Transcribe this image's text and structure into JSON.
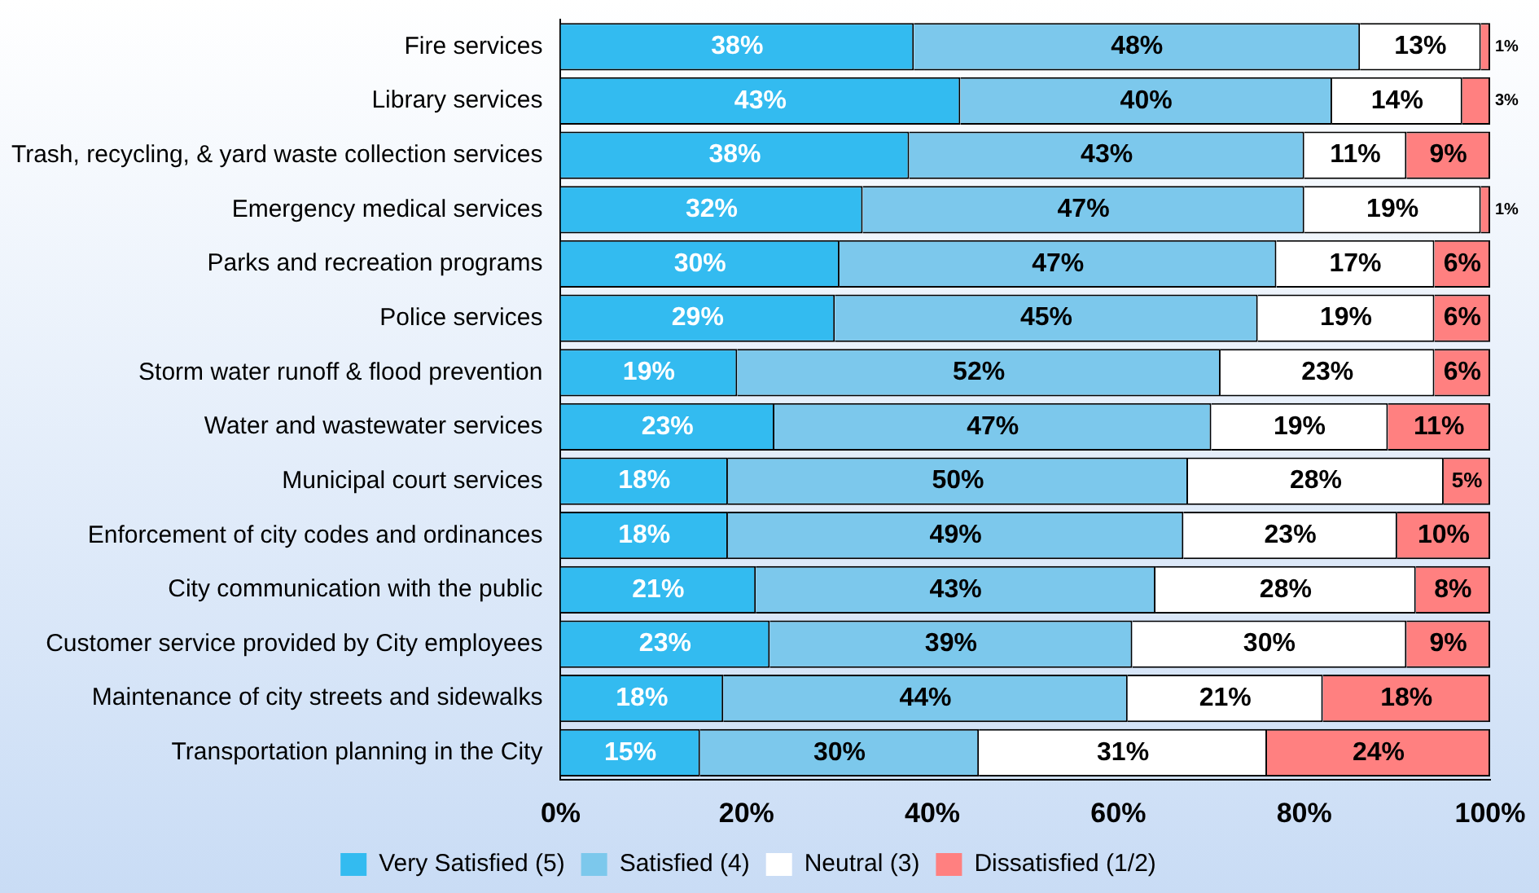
{
  "chart_data": {
    "type": "bar",
    "orientation": "horizontal",
    "stacked": true,
    "categories": [
      "Fire services",
      "Library services",
      "Trash, recycling, & yard waste collection services",
      "Emergency medical services",
      "Parks and recreation programs",
      "Police services",
      "Storm water runoff & flood prevention",
      "Water and wastewater services",
      "Municipal court services",
      "Enforcement of city codes and ordinances",
      "City communication with the public",
      "Customer service provided by City employees",
      "Maintenance of city streets and sidewalks",
      "Transportation planning in the City"
    ],
    "series": [
      {
        "name": "Very Satisfied (5)",
        "color": "#33bbf0",
        "values": [
          38,
          43,
          37.5,
          32.5,
          30,
          29.5,
          19,
          23,
          18,
          18,
          21,
          22.5,
          17.5,
          15
        ],
        "value_labels": [
          "38%",
          "43%",
          "38%",
          "32%",
          "30%",
          "29%",
          "19%",
          "23%",
          "18%",
          "18%",
          "21%",
          "23%",
          "18%",
          "15%"
        ]
      },
      {
        "name": "Satisfied (4)",
        "color": "#7cc8ec",
        "values": [
          48,
          40,
          42.5,
          47.5,
          47,
          45.5,
          52,
          47,
          49.5,
          49,
          43,
          39,
          43.5,
          30
        ],
        "value_labels": [
          "48%",
          "40%",
          "43%",
          "47%",
          "47%",
          "45%",
          "52%",
          "47%",
          "50%",
          "49%",
          "43%",
          "39%",
          "44%",
          "30%"
        ]
      },
      {
        "name": "Neutral (3)",
        "color": "#ffffff",
        "values": [
          13,
          14,
          11,
          19,
          17,
          19,
          23,
          19,
          27.5,
          23,
          28,
          29.5,
          21,
          31
        ],
        "value_labels": [
          "13%",
          "14%",
          "11%",
          "19%",
          "17%",
          "19%",
          "23%",
          "19%",
          "28%",
          "23%",
          "28%",
          "30%",
          "21%",
          "31%"
        ]
      },
      {
        "name": "Dissatisfied (1/2)",
        "color": "#ff8080",
        "values": [
          1,
          3,
          9,
          1,
          6,
          6,
          6,
          11,
          5,
          10,
          8,
          9,
          18,
          24
        ],
        "value_labels": [
          "1%",
          "3%",
          "9%",
          "1%",
          "6%",
          "6%",
          "6%",
          "11%",
          "5%",
          "10%",
          "8%",
          "9%",
          "18%",
          "24%"
        ]
      }
    ],
    "xlim": [
      0,
      100
    ],
    "xticks": [
      {
        "value": 0,
        "label": "0%"
      },
      {
        "value": 20,
        "label": "20%"
      },
      {
        "value": 40,
        "label": "40%"
      },
      {
        "value": 60,
        "label": "60%"
      },
      {
        "value": 80,
        "label": "80%"
      },
      {
        "value": 100,
        "label": "100%"
      }
    ],
    "grid": false,
    "legend": "bottom"
  }
}
